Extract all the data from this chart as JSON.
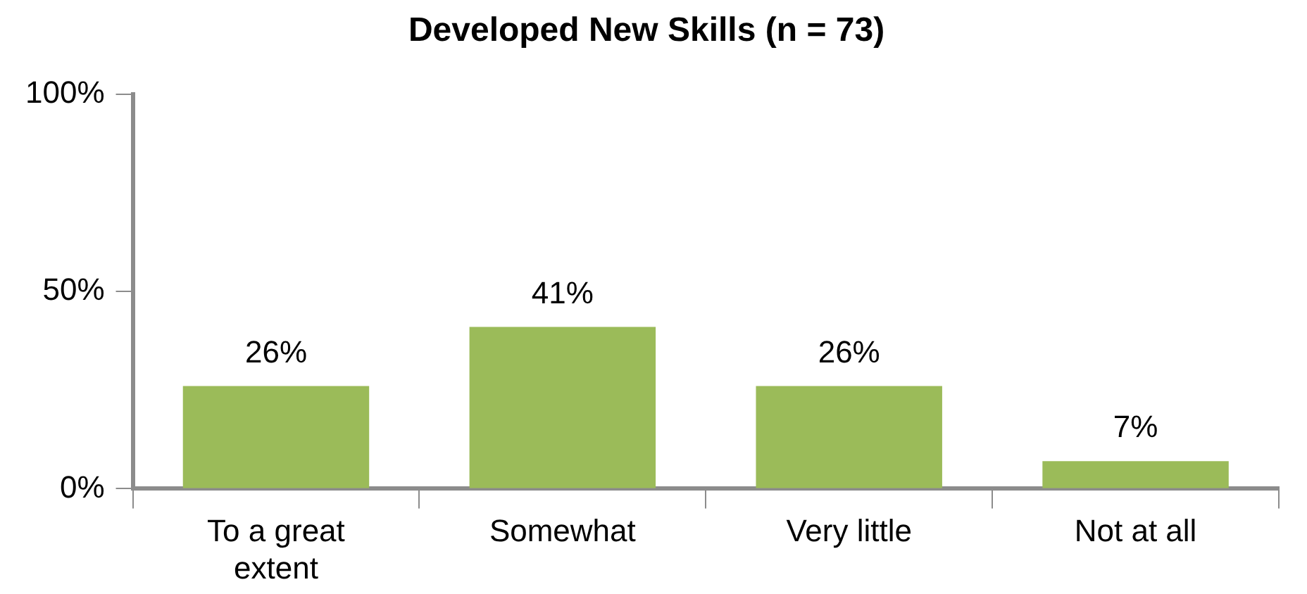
{
  "chart_data": {
    "type": "bar",
    "title": "Developed New Skills (n = 73)",
    "categories": [
      "To a great extent",
      "Somewhat",
      "Very little",
      "Not at all"
    ],
    "values": [
      26,
      41,
      26,
      7
    ],
    "value_labels": [
      "26%",
      "41%",
      "26%",
      "7%"
    ],
    "color": "#9bbb59",
    "ylim": [
      0,
      100
    ],
    "yticks": [
      {
        "value": 0,
        "label": "0%"
      },
      {
        "value": 50,
        "label": "50%"
      },
      {
        "value": 100,
        "label": "100%"
      }
    ],
    "grid": false,
    "legend": false
  }
}
